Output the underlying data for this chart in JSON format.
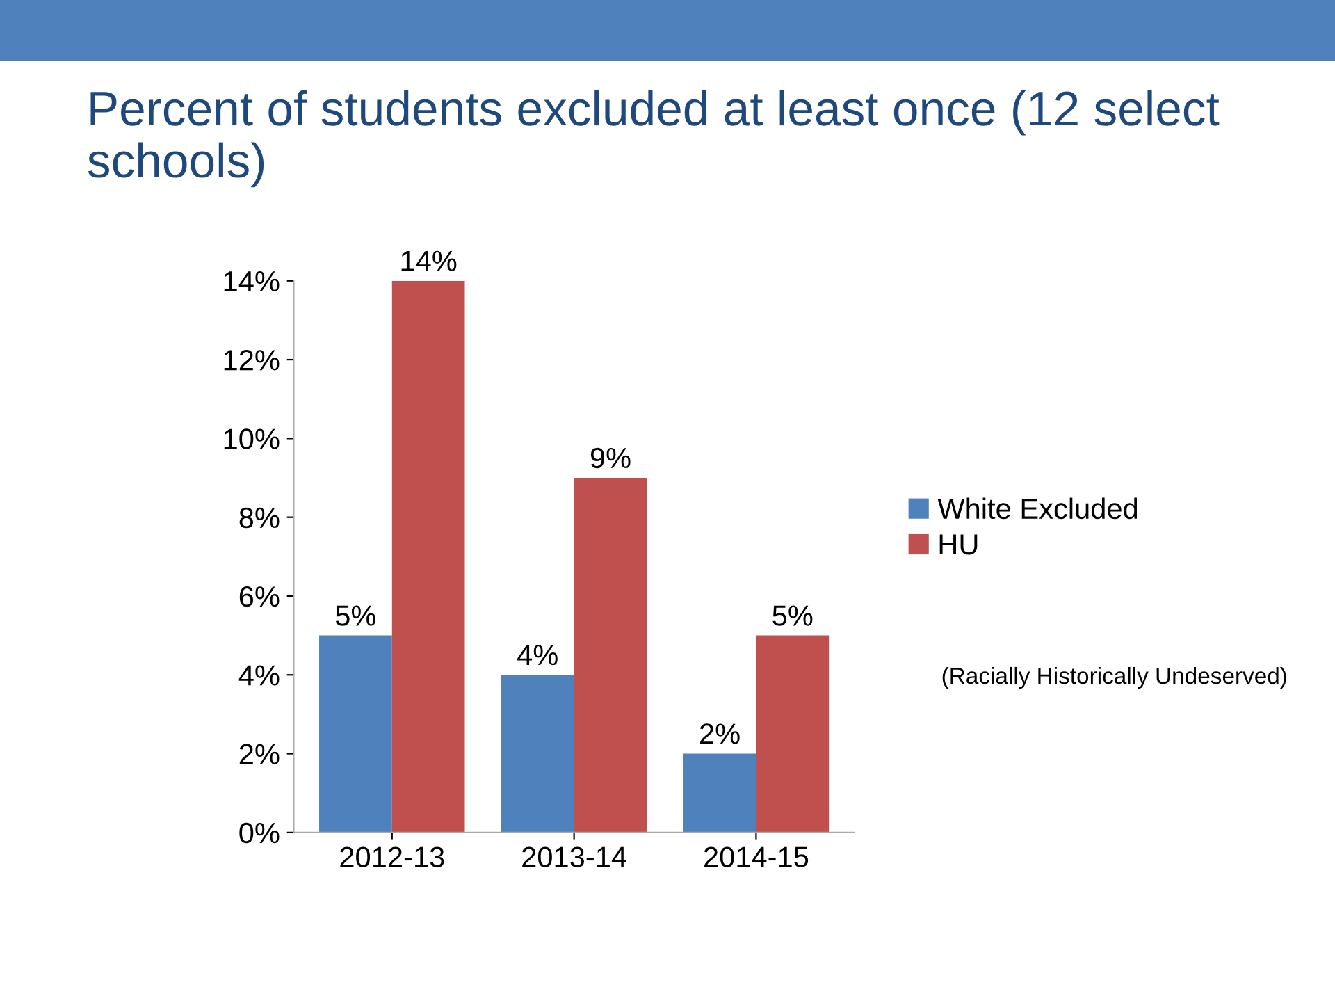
{
  "chart_data": {
    "type": "bar",
    "title": "Percent of students excluded at least once (12 select schools)",
    "categories": [
      "2012-13",
      "2013-14",
      "2014-15"
    ],
    "series": [
      {
        "name": "White Excluded",
        "color": "#4f81bd",
        "values": [
          5,
          4,
          2
        ],
        "value_labels": [
          "5%",
          "4%",
          "2%"
        ]
      },
      {
        "name": "HU",
        "color": "#c0504d",
        "values": [
          14,
          9,
          5
        ],
        "value_labels": [
          "14%",
          "9%",
          "5%"
        ]
      }
    ],
    "ylim": [
      0,
      14
    ],
    "yticks": [
      {
        "value": 0,
        "label": "0%"
      },
      {
        "value": 2,
        "label": "2%"
      },
      {
        "value": 4,
        "label": "4%"
      },
      {
        "value": 6,
        "label": "6%"
      },
      {
        "value": 8,
        "label": "8%"
      },
      {
        "value": 10,
        "label": "10%"
      },
      {
        "value": 12,
        "label": "12%"
      },
      {
        "value": 14,
        "label": "14%"
      }
    ],
    "legend": "right",
    "grid": false,
    "annotations": [
      "(Racially Historically Undeserved)"
    ]
  }
}
